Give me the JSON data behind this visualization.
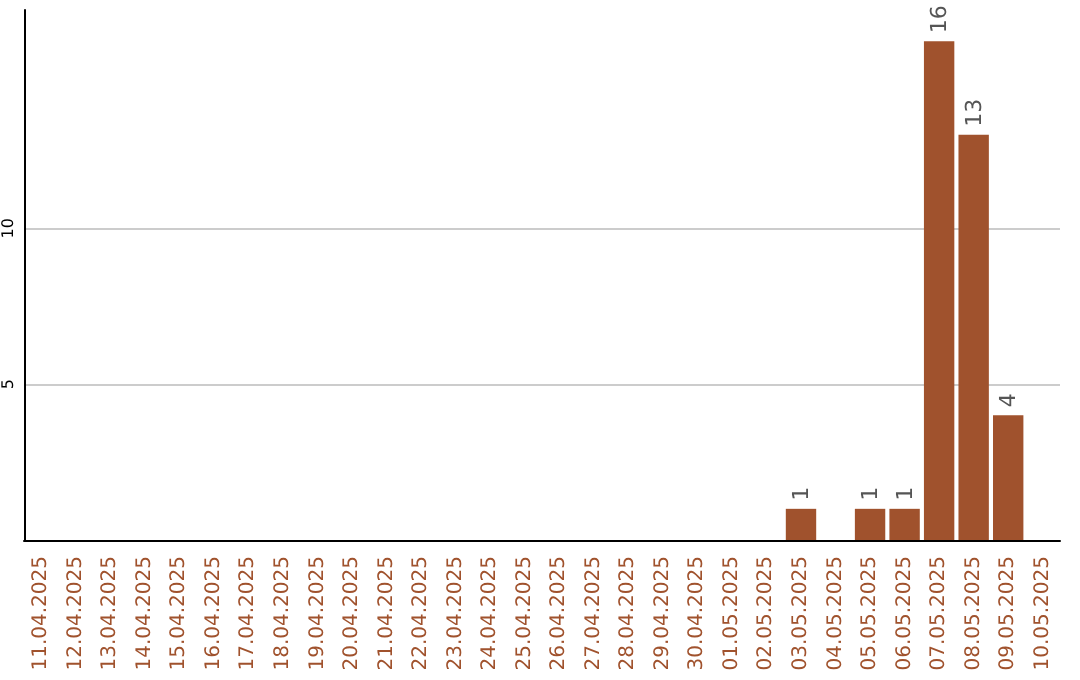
{
  "chart_data": {
    "type": "bar",
    "categories": [
      "11.04.2025",
      "12.04.2025",
      "13.04.2025",
      "14.04.2025",
      "15.04.2025",
      "16.04.2025",
      "17.04.2025",
      "18.04.2025",
      "19.04.2025",
      "20.04.2025",
      "21.04.2025",
      "22.04.2025",
      "23.04.2025",
      "24.04.2025",
      "25.04.2025",
      "26.04.2025",
      "27.04.2025",
      "28.04.2025",
      "29.04.2025",
      "30.04.2025",
      "01.05.2025",
      "02.05.2025",
      "03.05.2025",
      "04.05.2025",
      "05.05.2025",
      "06.05.2025",
      "07.05.2025",
      "08.05.2025",
      "09.05.2025",
      "10.05.2025"
    ],
    "values": [
      0,
      0,
      0,
      0,
      0,
      0,
      0,
      0,
      0,
      0,
      0,
      0,
      0,
      0,
      0,
      0,
      0,
      0,
      0,
      0,
      0,
      0,
      1,
      0,
      1,
      1,
      16,
      13,
      4,
      0
    ],
    "value_labels": [
      null,
      null,
      null,
      null,
      null,
      null,
      null,
      null,
      null,
      null,
      null,
      null,
      null,
      null,
      null,
      null,
      null,
      null,
      null,
      null,
      null,
      null,
      "1",
      null,
      "1",
      "1",
      "16",
      "13",
      "4",
      null
    ],
    "color": "#a0522d",
    "ylim": [
      0,
      17
    ],
    "yticks": [
      5,
      10
    ],
    "grid": "y"
  }
}
